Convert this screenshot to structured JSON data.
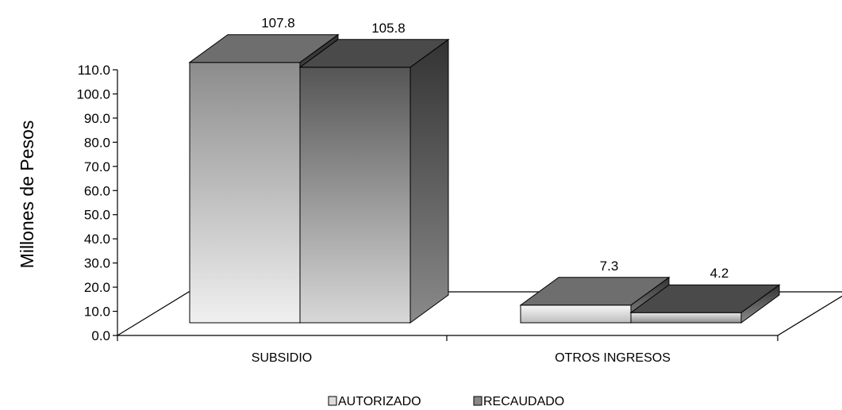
{
  "chart_data": {
    "type": "bar",
    "title": "",
    "ylabel": "Millones de Pesos",
    "xlabel": "",
    "categories": [
      "SUBSIDIO",
      "OTROS INGRESOS"
    ],
    "series": [
      {
        "name": "AUTORIZADO",
        "values": [
          107.8,
          7.3
        ]
      },
      {
        "name": "RECAUDADO",
        "values": [
          105.8,
          4.2
        ]
      }
    ],
    "data_labels": [
      [
        "107.8",
        "105.8"
      ],
      [
        "7.3",
        "4.2"
      ]
    ],
    "y_ticks": [
      "0.0",
      "10.0",
      "20.0",
      "30.0",
      "40.0",
      "50.0",
      "60.0",
      "70.0",
      "80.0",
      "90.0",
      "100.0",
      "110.0"
    ],
    "ylim": [
      0,
      110
    ],
    "grid": false,
    "legend_position": "bottom",
    "style": "3d-column",
    "colors": {
      "autorizado_front_top": "#8c8c8c",
      "autorizado_front_bottom": "#f0f0f0",
      "autorizado_top": "#6e6e6e",
      "recaudado_front_top": "#555555",
      "recaudado_front_bottom": "#d8d8d8",
      "recaudado_top": "#4a4a4a",
      "recaudado_side": "#3c3c3c"
    }
  }
}
